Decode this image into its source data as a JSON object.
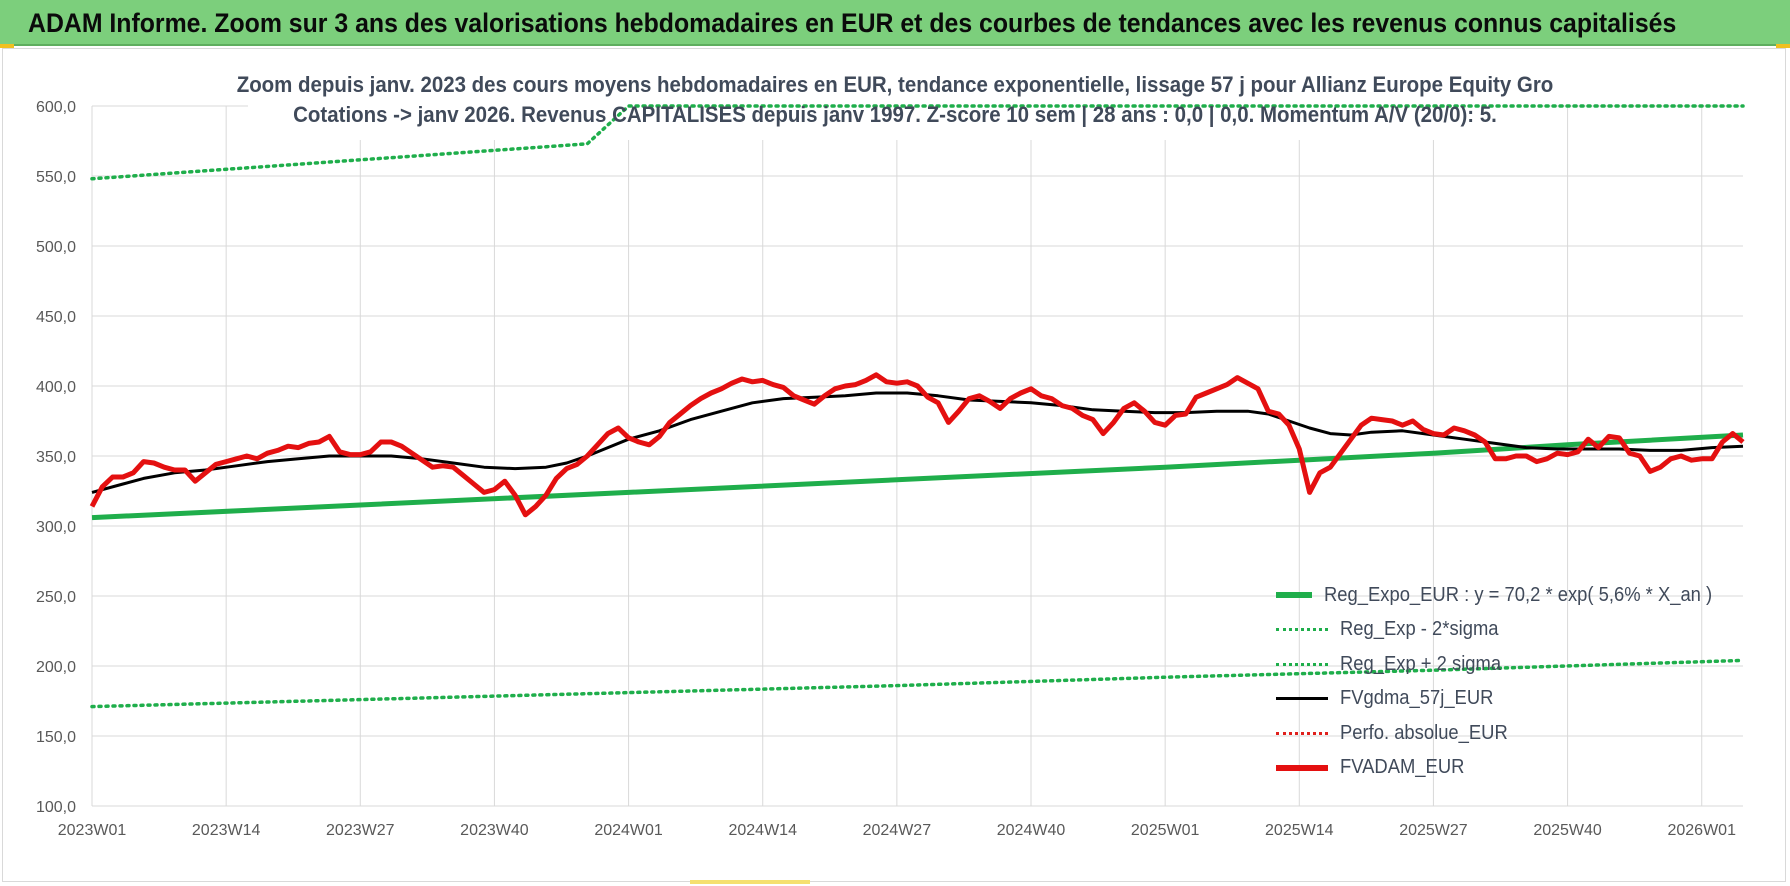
{
  "banner": {
    "title": "ADAM Informe. Zoom sur 3 ans des valorisations hebdomadaires en EUR et des courbes de tendances avec les revenus connus capitalisés"
  },
  "chart_data": {
    "type": "line",
    "title_line1": "Zoom depuis janv. 2023 des cours moyens hebdomadaires en EUR, tendance exponentielle, lissage 57 j pour Allianz Europe Equity Gro",
    "title_line2": "Cotations -> janv 2026. Revenus CAPITALISES depuis janv 1997. Z-score 10 sem | 28 ans : 0,0 | 0,0. Momentum A/V (20/0): 5.",
    "xlabel": "",
    "ylabel": "",
    "ylim": [
      100,
      600
    ],
    "yticks": [
      "100,0",
      "150,0",
      "200,0",
      "250,0",
      "300,0",
      "350,0",
      "400,0",
      "450,0",
      "500,0",
      "550,0",
      "600,0"
    ],
    "xlim": [
      0,
      160
    ],
    "xticks": [
      {
        "label": "2023W01",
        "x": 0
      },
      {
        "label": "2023W14",
        "x": 13
      },
      {
        "label": "2023W27",
        "x": 26
      },
      {
        "label": "2023W40",
        "x": 39
      },
      {
        "label": "2024W01",
        "x": 52
      },
      {
        "label": "2024W14",
        "x": 65
      },
      {
        "label": "2024W27",
        "x": 78
      },
      {
        "label": "2024W40",
        "x": 91
      },
      {
        "label": "2025W01",
        "x": 104
      },
      {
        "label": "2025W14",
        "x": 117
      },
      {
        "label": "2025W27",
        "x": 130
      },
      {
        "label": "2025W40",
        "x": 143
      },
      {
        "label": "2026W01",
        "x": 156
      }
    ],
    "grid": true,
    "legend_position": "bottom-right",
    "series": [
      {
        "name": "Reg_Expo_EUR : y = 70,2 * exp( 5,6% *  X_an )",
        "color": "#1fae4b",
        "style": "thick",
        "points": [
          [
            0,
            306
          ],
          [
            26,
            315
          ],
          [
            52,
            324
          ],
          [
            78,
            333
          ],
          [
            104,
            342
          ],
          [
            117,
            347
          ],
          [
            130,
            352
          ],
          [
            143,
            358
          ],
          [
            160,
            365
          ]
        ]
      },
      {
        "name": "Reg_Exp - 2*sigma",
        "color": "#1fae4b",
        "style": "dotted",
        "points": [
          [
            0,
            548
          ],
          [
            48,
            573
          ],
          [
            52,
            600
          ],
          [
            143,
            600
          ],
          [
            160,
            600
          ]
        ]
      },
      {
        "name": "Reg_Exp + 2 sigma",
        "color": "#1fae4b",
        "style": "dotted",
        "points": [
          [
            0,
            171
          ],
          [
            26,
            176
          ],
          [
            52,
            181
          ],
          [
            78,
            186
          ],
          [
            104,
            192
          ],
          [
            130,
            197
          ],
          [
            160,
            204
          ]
        ]
      },
      {
        "name": "FVgdma_57j_EUR",
        "color": "#000000",
        "style": "solid",
        "points": [
          [
            0,
            324
          ],
          [
            3,
            330
          ],
          [
            5,
            334
          ],
          [
            8,
            338
          ],
          [
            11,
            340
          ],
          [
            14,
            343
          ],
          [
            17,
            346
          ],
          [
            20,
            348
          ],
          [
            23,
            350
          ],
          [
            26,
            350
          ],
          [
            29,
            350
          ],
          [
            32,
            348
          ],
          [
            35,
            345
          ],
          [
            38,
            342
          ],
          [
            41,
            341
          ],
          [
            44,
            342
          ],
          [
            46,
            345
          ],
          [
            48,
            350
          ],
          [
            50,
            356
          ],
          [
            52,
            362
          ],
          [
            55,
            368
          ],
          [
            58,
            376
          ],
          [
            61,
            382
          ],
          [
            64,
            388
          ],
          [
            67,
            391
          ],
          [
            70,
            392
          ],
          [
            73,
            393
          ],
          [
            76,
            395
          ],
          [
            79,
            395
          ],
          [
            82,
            393
          ],
          [
            85,
            390
          ],
          [
            88,
            389
          ],
          [
            91,
            388
          ],
          [
            94,
            386
          ],
          [
            97,
            383
          ],
          [
            100,
            382
          ],
          [
            103,
            381
          ],
          [
            106,
            381
          ],
          [
            109,
            382
          ],
          [
            112,
            382
          ],
          [
            114,
            380
          ],
          [
            116,
            375
          ],
          [
            118,
            370
          ],
          [
            120,
            366
          ],
          [
            122,
            365
          ],
          [
            124,
            367
          ],
          [
            127,
            368
          ],
          [
            130,
            365
          ],
          [
            133,
            362
          ],
          [
            136,
            359
          ],
          [
            139,
            356
          ],
          [
            142,
            355
          ],
          [
            145,
            355
          ],
          [
            148,
            355
          ],
          [
            151,
            354
          ],
          [
            154,
            354
          ],
          [
            157,
            356
          ],
          [
            160,
            357
          ]
        ]
      },
      {
        "name": "Perfo. absolue_EUR",
        "color": "#e0201c",
        "style": "dotted",
        "points": []
      },
      {
        "name": "FVADAM_EUR",
        "color": "#e41010",
        "style": "thick",
        "points": [
          [
            0,
            314
          ],
          [
            1,
            328
          ],
          [
            2,
            335
          ],
          [
            3,
            335
          ],
          [
            4,
            338
          ],
          [
            5,
            346
          ],
          [
            6,
            345
          ],
          [
            7,
            342
          ],
          [
            8,
            340
          ],
          [
            9,
            340
          ],
          [
            10,
            332
          ],
          [
            11,
            338
          ],
          [
            12,
            344
          ],
          [
            13,
            346
          ],
          [
            14,
            348
          ],
          [
            15,
            350
          ],
          [
            16,
            348
          ],
          [
            17,
            352
          ],
          [
            18,
            354
          ],
          [
            19,
            357
          ],
          [
            20,
            356
          ],
          [
            21,
            359
          ],
          [
            22,
            360
          ],
          [
            23,
            364
          ],
          [
            24,
            353
          ],
          [
            25,
            351
          ],
          [
            26,
            351
          ],
          [
            27,
            353
          ],
          [
            28,
            360
          ],
          [
            29,
            360
          ],
          [
            30,
            357
          ],
          [
            31,
            352
          ],
          [
            32,
            347
          ],
          [
            33,
            342
          ],
          [
            34,
            343
          ],
          [
            35,
            342
          ],
          [
            36,
            336
          ],
          [
            37,
            330
          ],
          [
            38,
            324
          ],
          [
            39,
            326
          ],
          [
            40,
            332
          ],
          [
            41,
            322
          ],
          [
            42,
            308
          ],
          [
            43,
            314
          ],
          [
            44,
            322
          ],
          [
            45,
            334
          ],
          [
            46,
            341
          ],
          [
            47,
            344
          ],
          [
            48,
            350
          ],
          [
            49,
            358
          ],
          [
            50,
            366
          ],
          [
            51,
            370
          ],
          [
            52,
            363
          ],
          [
            53,
            360
          ],
          [
            54,
            358
          ],
          [
            55,
            364
          ],
          [
            56,
            374
          ],
          [
            57,
            380
          ],
          [
            58,
            386
          ],
          [
            59,
            391
          ],
          [
            60,
            395
          ],
          [
            61,
            398
          ],
          [
            62,
            402
          ],
          [
            63,
            405
          ],
          [
            64,
            403
          ],
          [
            65,
            404
          ],
          [
            66,
            401
          ],
          [
            67,
            399
          ],
          [
            68,
            393
          ],
          [
            69,
            390
          ],
          [
            70,
            387
          ],
          [
            71,
            393
          ],
          [
            72,
            398
          ],
          [
            73,
            400
          ],
          [
            74,
            401
          ],
          [
            75,
            404
          ],
          [
            76,
            408
          ],
          [
            77,
            403
          ],
          [
            78,
            402
          ],
          [
            79,
            403
          ],
          [
            80,
            400
          ],
          [
            81,
            392
          ],
          [
            82,
            388
          ],
          [
            83,
            374
          ],
          [
            84,
            382
          ],
          [
            85,
            391
          ],
          [
            86,
            393
          ],
          [
            87,
            389
          ],
          [
            88,
            384
          ],
          [
            89,
            391
          ],
          [
            90,
            395
          ],
          [
            91,
            398
          ],
          [
            92,
            393
          ],
          [
            93,
            391
          ],
          [
            94,
            386
          ],
          [
            95,
            384
          ],
          [
            96,
            379
          ],
          [
            97,
            376
          ],
          [
            98,
            366
          ],
          [
            99,
            374
          ],
          [
            100,
            384
          ],
          [
            101,
            388
          ],
          [
            102,
            382
          ],
          [
            103,
            374
          ],
          [
            104,
            372
          ],
          [
            105,
            379
          ],
          [
            106,
            380
          ],
          [
            107,
            392
          ],
          [
            108,
            395
          ],
          [
            109,
            398
          ],
          [
            110,
            401
          ],
          [
            111,
            406
          ],
          [
            112,
            402
          ],
          [
            113,
            398
          ],
          [
            114,
            382
          ],
          [
            115,
            380
          ],
          [
            116,
            372
          ],
          [
            117,
            355
          ],
          [
            118,
            324
          ],
          [
            119,
            338
          ],
          [
            120,
            342
          ],
          [
            121,
            352
          ],
          [
            122,
            362
          ],
          [
            123,
            372
          ],
          [
            124,
            377
          ],
          [
            125,
            376
          ],
          [
            126,
            375
          ],
          [
            127,
            372
          ],
          [
            128,
            375
          ],
          [
            129,
            369
          ],
          [
            130,
            366
          ],
          [
            131,
            365
          ],
          [
            132,
            370
          ],
          [
            133,
            368
          ],
          [
            134,
            365
          ],
          [
            135,
            360
          ],
          [
            136,
            348
          ],
          [
            137,
            348
          ],
          [
            138,
            350
          ],
          [
            139,
            350
          ],
          [
            140,
            346
          ],
          [
            141,
            348
          ],
          [
            142,
            352
          ],
          [
            143,
            351
          ],
          [
            144,
            353
          ],
          [
            145,
            362
          ],
          [
            146,
            356
          ],
          [
            147,
            364
          ],
          [
            148,
            363
          ],
          [
            149,
            352
          ],
          [
            150,
            350
          ],
          [
            151,
            339
          ],
          [
            152,
            342
          ],
          [
            153,
            348
          ],
          [
            154,
            350
          ],
          [
            155,
            347
          ],
          [
            156,
            348
          ],
          [
            157,
            348
          ],
          [
            158,
            360
          ],
          [
            159,
            366
          ],
          [
            160,
            360
          ]
        ]
      }
    ]
  }
}
